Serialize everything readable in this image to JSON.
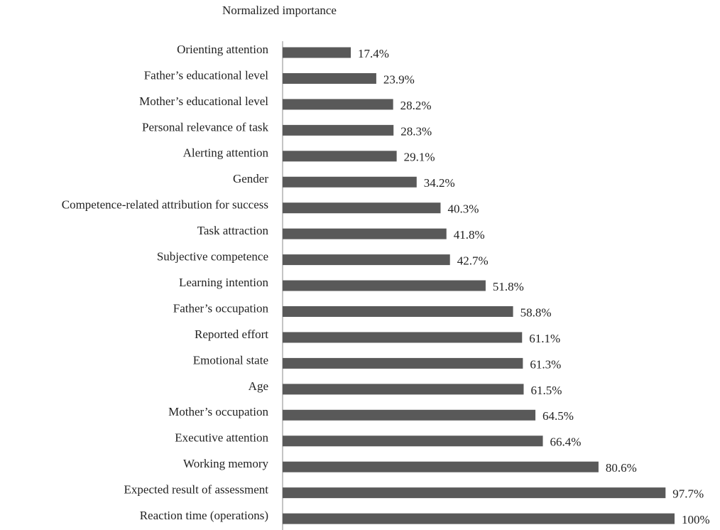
{
  "chart_data": {
    "type": "bar",
    "orientation": "horizontal",
    "title": "Normalized importance",
    "categories": [
      "Orienting attention",
      "Father’s educational level",
      "Mother’s educational level",
      "Personal relevance of task",
      "Alerting attention",
      "Gender",
      "Competence-related attribution for success",
      "Task attraction",
      "Subjective competence",
      "Learning intention",
      "Father’s occupation",
      "Reported effort",
      "Emotional state",
      "Age",
      "Mother’s occupation",
      "Executive attention",
      "Working memory",
      "Expected result of assessment",
      "Reaction time (operations)"
    ],
    "values": [
      17.4,
      23.9,
      28.2,
      28.3,
      29.1,
      34.2,
      40.3,
      41.8,
      42.7,
      51.8,
      58.8,
      61.1,
      61.3,
      61.5,
      64.5,
      66.4,
      80.6,
      97.7,
      100
    ],
    "value_labels": [
      "17.4%",
      "23.9%",
      "28.2%",
      "28.3%",
      "29.1%",
      "34.2%",
      "40.3%",
      "41.8%",
      "42.7%",
      "51.8%",
      "58.8%",
      "61.1%",
      "61.3%",
      "61.5%",
      "64.5%",
      "66.4%",
      "80.6%",
      "97.7%",
      "100%"
    ],
    "color": "#595959",
    "xlim": [
      0,
      100
    ]
  }
}
